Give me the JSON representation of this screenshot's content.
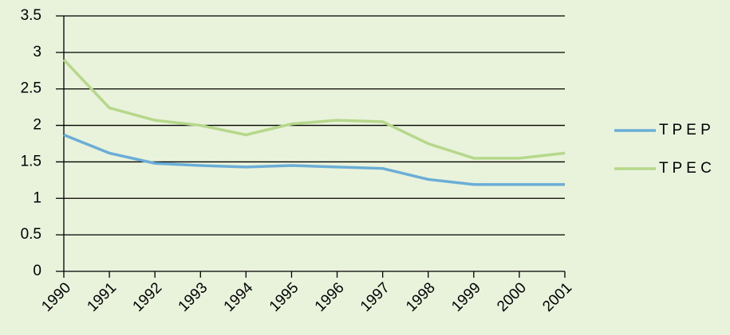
{
  "chart_data": {
    "type": "line",
    "x": [
      1990,
      1991,
      1992,
      1993,
      1994,
      1995,
      1996,
      1997,
      1998,
      1999,
      2000,
      2001
    ],
    "series": [
      {
        "name": "T P E P",
        "color": "#6aaed8",
        "values": [
          1.87,
          1.62,
          1.48,
          1.45,
          1.43,
          1.45,
          1.43,
          1.41,
          1.26,
          1.19,
          1.19,
          1.19
        ]
      },
      {
        "name": "T P E C",
        "color": "#b6d88a",
        "values": [
          2.9,
          2.24,
          2.07,
          2.0,
          1.87,
          2.02,
          2.07,
          2.05,
          1.75,
          1.55,
          1.55,
          1.62
        ]
      }
    ],
    "xlim": [
      1990,
      2001
    ],
    "xticks": [
      1990,
      1991,
      1992,
      1993,
      1994,
      1995,
      1996,
      1997,
      1998,
      1999,
      2000,
      2001
    ],
    "ylim": [
      0,
      3.5
    ],
    "yticks": [
      0,
      0.5,
      1,
      1.5,
      2,
      2.5,
      3,
      3.5
    ],
    "grid": true,
    "legend": "right"
  }
}
